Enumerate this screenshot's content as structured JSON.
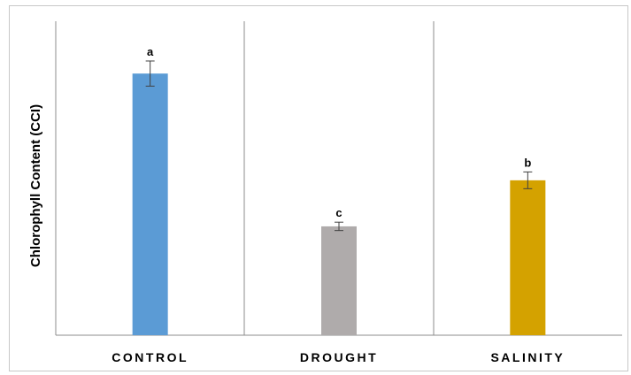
{
  "chart_data": {
    "type": "bar",
    "title": "",
    "xlabel": "",
    "ylabel": "Chlorophyll Content (CCI)",
    "categories": [
      "CONTROL",
      "DROUGHT",
      "SALINITY"
    ],
    "values": [
      25.0,
      10.4,
      14.8
    ],
    "error": [
      1.2,
      0.4,
      0.8
    ],
    "significance_labels": [
      "a",
      "c",
      "b"
    ],
    "colors": [
      "#5b9bd5",
      "#afabab",
      "#d4a200"
    ],
    "ylim": [
      0,
      30
    ],
    "y_ticks_shown": false,
    "grid": false,
    "legend": "none"
  }
}
